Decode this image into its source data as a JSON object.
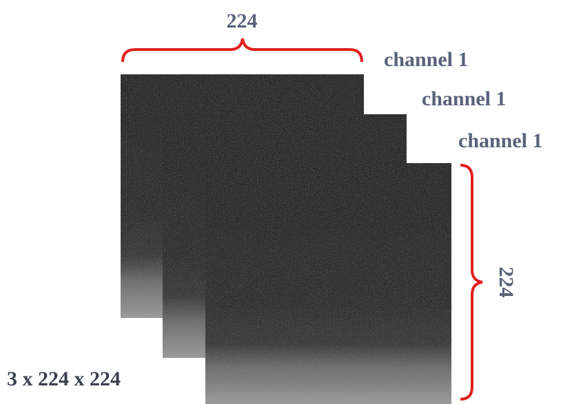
{
  "width_label": "224",
  "height_label": "224",
  "channels": [
    "channel 1",
    "channel 1",
    "channel 1"
  ],
  "shape_label": "3 x 224 x 224"
}
